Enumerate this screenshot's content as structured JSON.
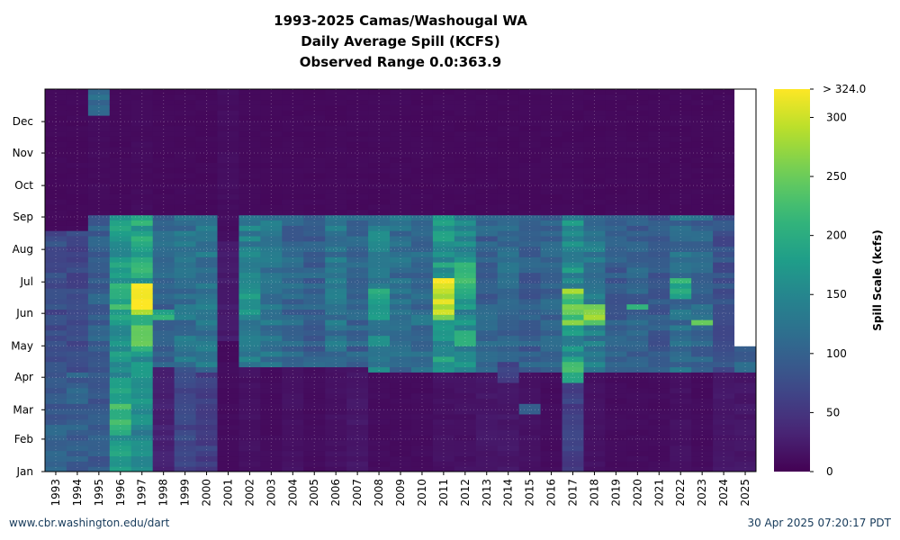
{
  "chart_data": {
    "type": "heatmap",
    "title_lines": [
      "1993-2025 Camas/Washougal WA",
      "Daily Average Spill (KCFS)",
      "Observed Range 0.0:363.9"
    ],
    "x_categories": [
      "1993",
      "1994",
      "1995",
      "1996",
      "1997",
      "1998",
      "1999",
      "2000",
      "2001",
      "2002",
      "2003",
      "2004",
      "2005",
      "2006",
      "2007",
      "2008",
      "2009",
      "2010",
      "2011",
      "2012",
      "2013",
      "2014",
      "2015",
      "2016",
      "2017",
      "2018",
      "2019",
      "2020",
      "2021",
      "2022",
      "2023",
      "2024",
      "2025"
    ],
    "y_ticks": [
      "Jan",
      "Feb",
      "Mar",
      "Apr",
      "May",
      "Jun",
      "Jul",
      "Aug",
      "Sep",
      "Oct",
      "Nov",
      "Dec"
    ],
    "colorbar": {
      "label": "Spill Scale (kcfs)",
      "range": [
        0,
        324
      ],
      "ticks": [
        "0",
        "50",
        "100",
        "150",
        "200",
        "250",
        "300"
      ],
      "top_label": "> 324.0"
    },
    "colors": {
      "low": "#440154",
      "high": "#fde725",
      "missing": "#ffffff"
    },
    "year_profiles": [
      {
        "year": "1993",
        "offseason": 8,
        "preseason": 95,
        "season_start": "Apr 06",
        "season_end": "Aug 21",
        "season_level": 75
      },
      {
        "year": "1994",
        "offseason": 8,
        "preseason": 95,
        "season_start": "Apr 05",
        "season_end": "Aug 21",
        "season_level": 70
      },
      {
        "year": "1995",
        "offseason": 10,
        "preseason": 90,
        "season_start": "Apr 05",
        "season_end": "Sep 01",
        "season_level": 95
      },
      {
        "year": "1996",
        "offseason": 8,
        "preseason": 170,
        "season_start": "Apr 20",
        "season_end": "Sep 01",
        "season_level": 165
      },
      {
        "year": "1997",
        "offseason": 10,
        "preseason": 150,
        "season_start": "Apr 20",
        "season_end": "Sep 01",
        "season_level": 190
      },
      {
        "year": "1998",
        "offseason": 8,
        "preseason": 30,
        "season_start": "Apr 10",
        "season_end": "Sep 01",
        "season_level": 105
      },
      {
        "year": "1999",
        "offseason": 8,
        "preseason": 70,
        "season_start": "Apr 10",
        "season_end": "Sep 01",
        "season_level": 120
      },
      {
        "year": "2000",
        "offseason": 8,
        "preseason": 60,
        "season_start": "Apr 08",
        "season_end": "Sep 01",
        "season_level": 125
      },
      {
        "year": "2001",
        "offseason": 12,
        "preseason": 10,
        "season_start": "May 05",
        "season_end": "Aug 10",
        "season_level": 25
      },
      {
        "year": "2002",
        "offseason": 8,
        "preseason": 15,
        "season_start": "Apr 10",
        "season_end": "Sep 01",
        "season_level": 140
      },
      {
        "year": "2003",
        "offseason": 8,
        "preseason": 10,
        "season_start": "Apr 10",
        "season_end": "Sep 01",
        "season_level": 120
      },
      {
        "year": "2004",
        "offseason": 8,
        "preseason": 15,
        "season_start": "Apr 10",
        "season_end": "Sep 01",
        "season_level": 105
      },
      {
        "year": "2005",
        "offseason": 8,
        "preseason": 10,
        "season_start": "Apr 10",
        "season_end": "Sep 01",
        "season_level": 100
      },
      {
        "year": "2006",
        "offseason": 8,
        "preseason": 15,
        "season_start": "Apr 10",
        "season_end": "Sep 01",
        "season_level": 125
      },
      {
        "year": "2007",
        "offseason": 8,
        "preseason": 20,
        "season_start": "Apr 10",
        "season_end": "Sep 01",
        "season_level": 100
      },
      {
        "year": "2008",
        "offseason": 8,
        "preseason": 10,
        "season_start": "Apr 08",
        "season_end": "Sep 01",
        "season_level": 140
      },
      {
        "year": "2009",
        "offseason": 8,
        "preseason": 10,
        "season_start": "Apr 08",
        "season_end": "Sep 01",
        "season_level": 115
      },
      {
        "year": "2010",
        "offseason": 8,
        "preseason": 10,
        "season_start": "Apr 08",
        "season_end": "Sep 01",
        "season_level": 115
      },
      {
        "year": "2011",
        "offseason": 8,
        "preseason": 15,
        "season_start": "Apr 08",
        "season_end": "Sep 01",
        "season_level": 170
      },
      {
        "year": "2012",
        "offseason": 8,
        "preseason": 15,
        "season_start": "Apr 08",
        "season_end": "Sep 01",
        "season_level": 155
      },
      {
        "year": "2013",
        "offseason": 8,
        "preseason": 20,
        "season_start": "Apr 08",
        "season_end": "Sep 01",
        "season_level": 100
      },
      {
        "year": "2014",
        "offseason": 8,
        "preseason": 20,
        "season_start": "Apr 08",
        "season_end": "Sep 01",
        "season_level": 110
      },
      {
        "year": "2015",
        "offseason": 8,
        "preseason": 15,
        "season_start": "Apr 08",
        "season_end": "Sep 01",
        "season_level": 95
      },
      {
        "year": "2016",
        "offseason": 8,
        "preseason": 10,
        "season_start": "Apr 08",
        "season_end": "Sep 01",
        "season_level": 100
      },
      {
        "year": "2017",
        "offseason": 8,
        "preseason": 60,
        "season_start": "Apr 08",
        "season_end": "Sep 01",
        "season_level": 160
      },
      {
        "year": "2018",
        "offseason": 8,
        "preseason": 15,
        "season_start": "Apr 08",
        "season_end": "Sep 01",
        "season_level": 130
      },
      {
        "year": "2019",
        "offseason": 8,
        "preseason": 10,
        "season_start": "Apr 08",
        "season_end": "Sep 01",
        "season_level": 95
      },
      {
        "year": "2020",
        "offseason": 8,
        "preseason": 10,
        "season_start": "Apr 08",
        "season_end": "Sep 01",
        "season_level": 100
      },
      {
        "year": "2021",
        "offseason": 8,
        "preseason": 10,
        "season_start": "Apr 08",
        "season_end": "Sep 01",
        "season_level": 90
      },
      {
        "year": "2022",
        "offseason": 8,
        "preseason": 15,
        "season_start": "Apr 08",
        "season_end": "Sep 01",
        "season_level": 115
      },
      {
        "year": "2023",
        "offseason": 8,
        "preseason": 10,
        "season_start": "Apr 08",
        "season_end": "Sep 01",
        "season_level": 105
      },
      {
        "year": "2024",
        "offseason": 8,
        "preseason": 20,
        "season_start": "Apr 08",
        "season_end": "Sep 01",
        "season_level": 80
      },
      {
        "year": "2025",
        "offseason": 10,
        "preseason": 20,
        "season_start": "Apr 08",
        "season_end": "Apr 30",
        "season_level": 110,
        "data_end": "Apr 30"
      }
    ],
    "hotspots": [
      {
        "year": "1995",
        "from": "Dec 08",
        "to": "Dec 31",
        "value": 110
      },
      {
        "year": "1996",
        "from": "Feb 10",
        "to": "Mar 10",
        "value": 210
      },
      {
        "year": "1996",
        "from": "May 25",
        "to": "Jul 01",
        "value": 200
      },
      {
        "year": "1997",
        "from": "Jun 01",
        "to": "Jul 01",
        "value": 320
      },
      {
        "year": "1997",
        "from": "May 01",
        "to": "May 25",
        "value": 230
      },
      {
        "year": "1998",
        "from": "May 25",
        "to": "Jun 05",
        "value": 190
      },
      {
        "year": "2002",
        "from": "Jun 01",
        "to": "Jun 20",
        "value": 180
      },
      {
        "year": "2008",
        "from": "May 25",
        "to": "Jun 25",
        "value": 190
      },
      {
        "year": "2011",
        "from": "May 25",
        "to": "Jul 05",
        "value": 290
      },
      {
        "year": "2012",
        "from": "May 01",
        "to": "May 15",
        "value": 210
      },
      {
        "year": "2012",
        "from": "Jun 15",
        "to": "Jul 20",
        "value": 200
      },
      {
        "year": "2014",
        "from": "Mar 25",
        "to": "Apr 15",
        "value": 60
      },
      {
        "year": "2015",
        "from": "Feb 25",
        "to": "Mar 05",
        "value": 100
      },
      {
        "year": "2017",
        "from": "Mar 25",
        "to": "Apr 20",
        "value": 200
      },
      {
        "year": "2017",
        "from": "May 20",
        "to": "Jun 25",
        "value": 250
      },
      {
        "year": "2018",
        "from": "May 20",
        "to": "Jun 12",
        "value": 270
      },
      {
        "year": "2020",
        "from": "Jun 05",
        "to": "Jun 10",
        "value": 200
      },
      {
        "year": "2022",
        "from": "Jun 15",
        "to": "Jul 05",
        "value": 210
      },
      {
        "year": "2023",
        "from": "May 20",
        "to": "May 25",
        "value": 220
      }
    ]
  },
  "footer": {
    "source": "www.cbr.washington.edu/dart",
    "timestamp": "30 Apr 2025 07:20:17 PDT"
  }
}
